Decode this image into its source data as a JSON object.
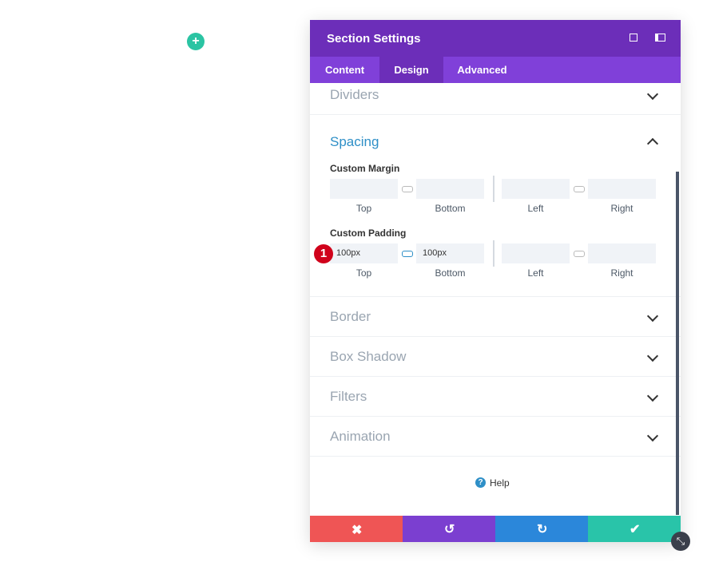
{
  "header": {
    "title": "Section Settings"
  },
  "tabs": [
    "Content",
    "Design",
    "Advanced"
  ],
  "sections": [
    "Dividers",
    "Spacing",
    "Border",
    "Box Shadow",
    "Filters",
    "Animation"
  ],
  "spacing": {
    "margin": {
      "label": "Custom Margin",
      "fields": [
        "Top",
        "Bottom",
        "Left",
        "Right"
      ]
    },
    "padding": {
      "label": "Custom Padding",
      "fields": [
        "Top",
        "Bottom",
        "Left",
        "Right"
      ],
      "values": [
        "100px",
        "100px"
      ]
    }
  },
  "badge": "1",
  "help": "Help"
}
